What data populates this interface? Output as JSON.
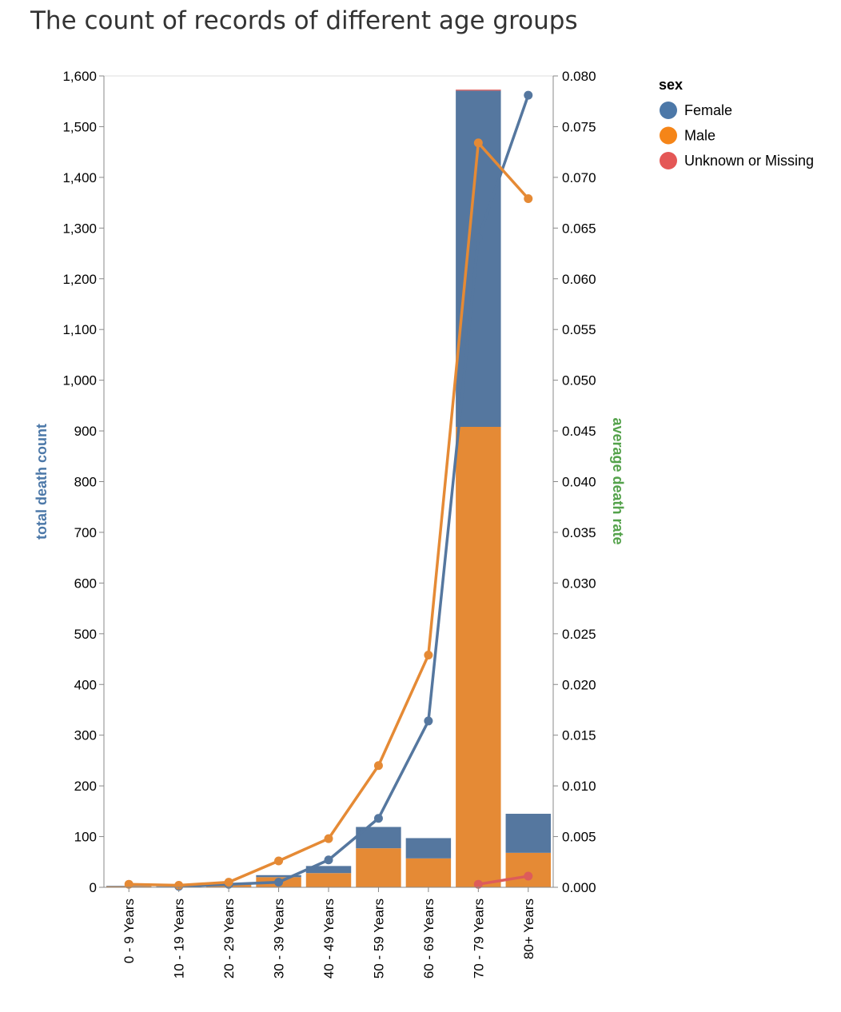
{
  "title": "The count of records of different age groups",
  "chart_data": {
    "type": "bar",
    "title": "The count of records of different age groups",
    "categories": [
      "0 - 9 Years",
      "10 - 19 Years",
      "20 - 29 Years",
      "30 - 39 Years",
      "40 - 49 Years",
      "50 - 59 Years",
      "60 - 69 Years",
      "70 - 79 Years",
      "80+ Years"
    ],
    "y_left": {
      "label": "total death count",
      "label_color": "#4c78a8",
      "ylim": [
        0,
        1600
      ],
      "ticks": [
        0,
        100,
        200,
        300,
        400,
        500,
        600,
        700,
        800,
        900,
        1000,
        1100,
        1200,
        1300,
        1400,
        1500,
        1600
      ],
      "tick_labels": [
        "0",
        "100",
        "200",
        "300",
        "400",
        "500",
        "600",
        "700",
        "800",
        "900",
        "1,000",
        "1,100",
        "1,200",
        "1,300",
        "1,400",
        "1,500",
        "1,600"
      ]
    },
    "y_right": {
      "label": "average death rate",
      "label_color": "#54a24b",
      "ylim": [
        0,
        0.08
      ],
      "ticks": [
        0,
        0.005,
        0.01,
        0.015,
        0.02,
        0.025,
        0.03,
        0.035,
        0.04,
        0.045,
        0.05,
        0.055,
        0.06,
        0.065,
        0.07,
        0.075,
        0.08
      ],
      "tick_labels": [
        "0.000",
        "0.005",
        "0.010",
        "0.015",
        "0.020",
        "0.025",
        "0.030",
        "0.035",
        "0.040",
        "0.045",
        "0.050",
        "0.055",
        "0.060",
        "0.065",
        "0.070",
        "0.075",
        "0.080"
      ]
    },
    "bar_series": [
      {
        "name": "Male",
        "color": "#e58a35",
        "values": [
          2,
          1,
          5,
          20,
          28,
          77,
          57,
          908,
          68
        ]
      },
      {
        "name": "Female",
        "color": "#55779f",
        "values": [
          1,
          1,
          3,
          4,
          14,
          42,
          40,
          663,
          77
        ]
      },
      {
        "name": "Unknown or Missing",
        "color": "#dd5c5a",
        "values": [
          0,
          0,
          0,
          0,
          0,
          0,
          0,
          2,
          0
        ]
      }
    ],
    "line_series": [
      {
        "name": "Female",
        "color": "#55779f",
        "categories": [
          "10 - 19 Years",
          "20 - 29 Years",
          "30 - 39 Years",
          "40 - 49 Years",
          "50 - 59 Years",
          "60 - 69 Years",
          "70 - 79 Years",
          "80+ Years"
        ],
        "values": [
          0.0001,
          0.0003,
          0.0005,
          0.0027,
          0.0068,
          0.0164,
          0.064,
          0.0781
        ]
      },
      {
        "name": "Male",
        "color": "#e58a35",
        "categories": [
          "0 - 9 Years",
          "10 - 19 Years",
          "20 - 29 Years",
          "30 - 39 Years",
          "40 - 49 Years",
          "50 - 59 Years",
          "60 - 69 Years",
          "70 - 79 Years",
          "80+ Years"
        ],
        "values": [
          0.0003,
          0.0002,
          0.0005,
          0.0026,
          0.0048,
          0.012,
          0.0229,
          0.0734,
          0.0679
        ]
      },
      {
        "name": "Unknown or Missing",
        "color": "#dd5c5a",
        "categories": [
          "70 - 79 Years",
          "80+ Years"
        ],
        "values": [
          0.0003,
          0.0011
        ]
      }
    ],
    "legend": {
      "title": "sex",
      "position": "top-right",
      "items": [
        {
          "label": "Female",
          "color": "#4c78a8"
        },
        {
          "label": "Male",
          "color": "#f58518"
        },
        {
          "label": "Unknown or Missing",
          "color": "#e45756"
        }
      ]
    }
  }
}
